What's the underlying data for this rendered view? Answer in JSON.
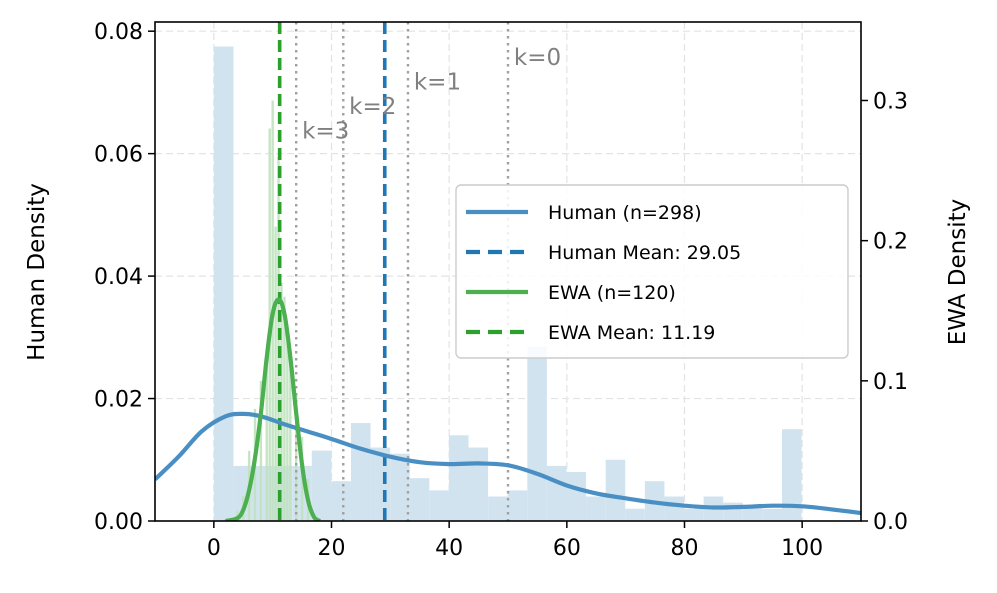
{
  "chart_data": {
    "type": "histogram-kde",
    "xlim": [
      -10,
      110
    ],
    "ylim_left": [
      0,
      0.0815
    ],
    "ylim_right": [
      0,
      0.356
    ],
    "ylabel_left": "Human Density",
    "ylabel_right": "EWA Density",
    "xticks": [
      0,
      20,
      40,
      60,
      80,
      100
    ],
    "yticks_left": [
      "0.00",
      "0.02",
      "0.04",
      "0.06",
      "0.08"
    ],
    "yticks_right": [
      "0.0",
      "0.1",
      "0.2",
      "0.3"
    ],
    "grid": true,
    "legend_placement": "center-right",
    "colors": {
      "human": "#4a8fc4",
      "human_mean": "#1f77b4",
      "human_hist": "#d2e3f0",
      "ewa": "#4caf50",
      "ewa_mean": "#2ca02c",
      "ewa_hist": "#bfe2bf",
      "k_lines": "#a0a0a0",
      "k_text": "#808080"
    },
    "human_hist": {
      "bin_width": 3.33,
      "start": 0,
      "heights": [
        0.0775,
        0.009,
        0.009,
        0.009,
        0.009,
        0.0115,
        0.0065,
        0.016,
        0.012,
        0.011,
        0.007,
        0.005,
        0.014,
        0.012,
        0.004,
        0.005,
        0.0285,
        0.009,
        0.008,
        0.004,
        0.01,
        0.002,
        0.0065,
        0.004,
        0.002,
        0.004,
        0.003,
        0.0025,
        0.002,
        0.015
      ]
    },
    "human_kde": {
      "x": [
        -10,
        -6,
        -2,
        2,
        5,
        8,
        12,
        16,
        20,
        25,
        30,
        35,
        40,
        45,
        50,
        55,
        60,
        65,
        70,
        75,
        80,
        85,
        90,
        95,
        100,
        105,
        110
      ],
      "y": [
        0.0068,
        0.0105,
        0.0147,
        0.0171,
        0.0175,
        0.0171,
        0.0158,
        0.0146,
        0.0134,
        0.0118,
        0.0105,
        0.0096,
        0.0093,
        0.0094,
        0.0091,
        0.0077,
        0.0058,
        0.0045,
        0.0037,
        0.003,
        0.0025,
        0.0022,
        0.0023,
        0.0025,
        0.0024,
        0.0019,
        0.0013
      ]
    },
    "ewa_hist": {
      "x": [
        4,
        5,
        6,
        7,
        8,
        9,
        9.5,
        10,
        10.5,
        11,
        11.5,
        12,
        12.5,
        13,
        14,
        15,
        16
      ],
      "heights": [
        0.007,
        0.018,
        0.05,
        0.08,
        0.1,
        0.12,
        0.28,
        0.3,
        0.21,
        0.26,
        0.17,
        0.16,
        0.13,
        0.12,
        0.09,
        0.06,
        0.03
      ]
    },
    "ewa_kde": {
      "x": [
        2,
        4,
        5,
        6,
        7,
        8,
        9,
        10,
        11,
        12,
        13,
        14,
        15,
        16,
        17,
        18
      ],
      "y": [
        0.0,
        0.002,
        0.008,
        0.022,
        0.045,
        0.077,
        0.117,
        0.148,
        0.158,
        0.148,
        0.117,
        0.077,
        0.04,
        0.015,
        0.003,
        0.0
      ]
    },
    "human_mean": 29.05,
    "ewa_mean": 11.19,
    "k_lines": [
      {
        "x": 50.0,
        "label": "k=0",
        "label_x": 51,
        "label_y": 0.0745
      },
      {
        "x": 33.0,
        "label": "k=1",
        "label_x": 34,
        "label_y": 0.0705
      },
      {
        "x": 22.0,
        "label": "k=2",
        "label_x": 23,
        "label_y": 0.0665
      },
      {
        "x": 14.0,
        "label": "k=3",
        "label_x": 15,
        "label_y": 0.0625
      }
    ],
    "legend": [
      {
        "label": "Human (n=298)",
        "style": "solid",
        "color": "#4a8fc4"
      },
      {
        "label": "Human Mean: 29.05",
        "style": "dashed",
        "color": "#1f77b4"
      },
      {
        "label": "EWA (n=120)",
        "style": "solid",
        "color": "#4caf50"
      },
      {
        "label": "EWA Mean: 11.19",
        "style": "dashed",
        "color": "#2ca02c"
      }
    ]
  }
}
